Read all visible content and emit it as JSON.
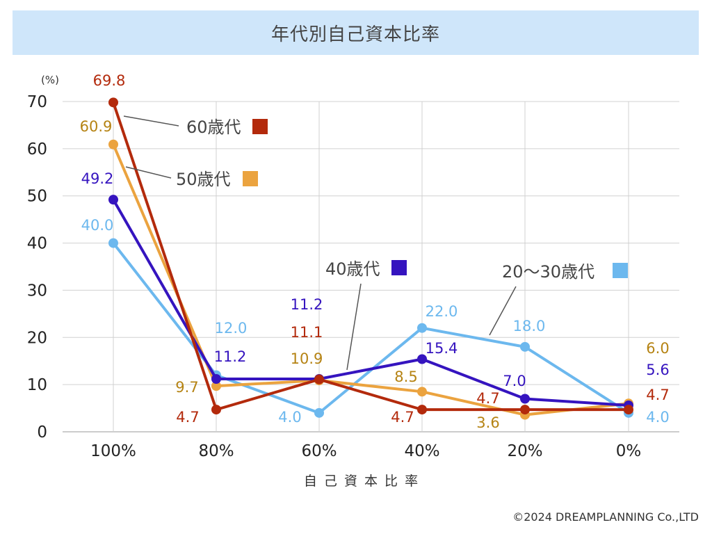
{
  "chart_data": {
    "type": "line",
    "title": "年代別自己資本比率",
    "xlabel": "自 己 資 本 比 率",
    "ylabel": "(%)",
    "categories": [
      "100%",
      "80%",
      "60%",
      "40%",
      "20%",
      "0%"
    ],
    "ylim": [
      0,
      70
    ],
    "yticks": [
      "0",
      "10",
      "20",
      "30",
      "40",
      "50",
      "60",
      "70"
    ],
    "grid": true,
    "series": [
      {
        "name": "20〜30歳代",
        "color": "#6cb8ee",
        "label_color": "#6cb8ee",
        "values": [
          40.0,
          12.0,
          4.0,
          22.0,
          18.0,
          4.0
        ],
        "labels": [
          "40.0",
          "12.0",
          "4.0",
          "22.0",
          "18.0",
          "4.0"
        ]
      },
      {
        "name": "50歳代",
        "color": "#eba33f",
        "label_color": "#b58313",
        "values": [
          60.9,
          9.7,
          10.9,
          8.5,
          3.6,
          6.0
        ],
        "labels": [
          "60.9",
          "9.7",
          "10.9",
          "8.5",
          "3.6",
          "6.0"
        ]
      },
      {
        "name": "40歳代",
        "color": "#3514bf",
        "label_color": "#3514bf",
        "values": [
          49.2,
          11.2,
          11.2,
          15.4,
          7.0,
          5.6
        ],
        "labels": [
          "49.2",
          "11.2",
          "11.2",
          "15.4",
          "7.0",
          "5.6"
        ]
      },
      {
        "name": "60歳代",
        "color": "#b32a0c",
        "label_color": "#b32a0c",
        "values": [
          69.8,
          4.7,
          11.1,
          4.7,
          4.7,
          4.7
        ],
        "labels": [
          "69.8",
          "4.7",
          "11.1",
          "4.7",
          "4.7",
          "4.7"
        ]
      }
    ],
    "legend": [
      "60歳代",
      "50歳代",
      "40歳代",
      "20〜30歳代"
    ]
  },
  "footer": {
    "copyright": "©2024 DREAMPLANNING Co.,LTD"
  }
}
